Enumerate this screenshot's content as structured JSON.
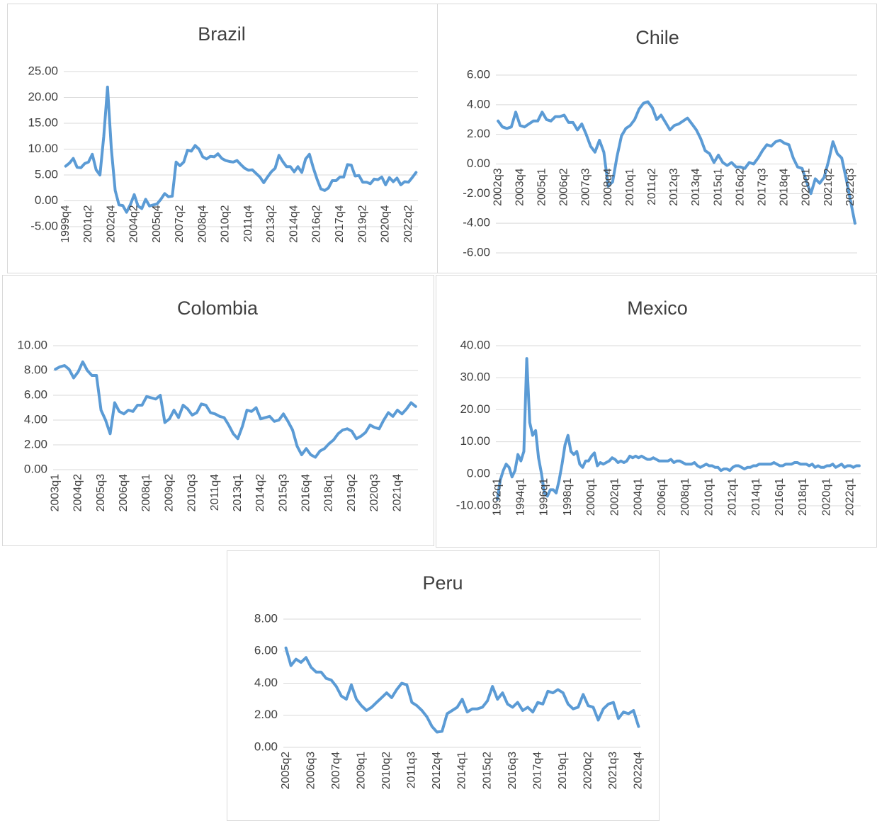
{
  "chart_data": [
    {
      "type": "line",
      "title": "Brazil",
      "color": "#5b9bd5",
      "grid": true,
      "ylim": [
        -5,
        25
      ],
      "yticks": [
        {
          "value": -5,
          "label": "-5.00"
        },
        {
          "value": 0,
          "label": "0.00"
        },
        {
          "value": 5,
          "label": "5.00"
        },
        {
          "value": 10,
          "label": "10.00"
        },
        {
          "value": 15,
          "label": "15.00"
        },
        {
          "value": 20,
          "label": "20.00"
        },
        {
          "value": 25,
          "label": "25.00"
        }
      ],
      "categories": [
        "1999q4",
        null,
        null,
        null,
        null,
        null,
        "2001q2",
        null,
        null,
        null,
        null,
        null,
        "2002q4",
        null,
        null,
        null,
        null,
        null,
        "2004q2",
        null,
        null,
        null,
        null,
        null,
        "2005q4",
        null,
        null,
        null,
        null,
        null,
        "2007q2",
        null,
        null,
        null,
        null,
        null,
        "2008q4",
        null,
        null,
        null,
        null,
        null,
        "2010q2",
        null,
        null,
        null,
        null,
        null,
        "2011q4",
        null,
        null,
        null,
        null,
        null,
        "2013q2",
        null,
        null,
        null,
        null,
        null,
        "2014q4",
        null,
        null,
        null,
        null,
        null,
        "2016q2",
        null,
        null,
        null,
        null,
        null,
        "2017q4",
        null,
        null,
        null,
        null,
        null,
        "2019q2",
        null,
        null,
        null,
        null,
        null,
        "2020q4",
        null,
        null,
        null,
        null,
        null,
        "2022q2",
        null,
        null
      ],
      "values": [
        6.7,
        7.3,
        8.2,
        6.5,
        6.4,
        7.2,
        7.5,
        9.0,
        6.0,
        5.0,
        12.5,
        22.0,
        10.0,
        2.0,
        -0.8,
        -0.9,
        -2.2,
        -0.7,
        1.2,
        -1.0,
        -1.5,
        0.3,
        -1.0,
        -0.8,
        -0.6,
        0.3,
        1.4,
        0.8,
        0.9,
        7.5,
        6.8,
        7.5,
        9.8,
        9.6,
        10.7,
        10.0,
        8.5,
        8.1,
        8.6,
        8.5,
        9.1,
        8.2,
        7.8,
        7.6,
        7.5,
        7.8,
        7.0,
        6.3,
        5.9,
        6.0,
        5.3,
        4.6,
        3.5,
        4.6,
        5.6,
        6.3,
        8.8,
        7.6,
        6.6,
        6.6,
        5.6,
        6.6,
        5.5,
        8.1,
        9.0,
        6.4,
        4.2,
        2.3,
        2.0,
        2.5,
        3.9,
        3.9,
        4.6,
        4.6,
        7.0,
        6.9,
        4.8,
        4.9,
        3.6,
        3.6,
        3.3,
        4.2,
        4.1,
        4.6,
        3.1,
        4.5,
        3.7,
        4.4,
        3.1,
        3.7,
        3.6,
        4.5,
        5.5
      ]
    },
    {
      "type": "line",
      "title": "Chile",
      "color": "#5b9bd5",
      "grid": true,
      "ylim": [
        -6,
        6
      ],
      "yticks": [
        {
          "value": -6,
          "label": "-6.00"
        },
        {
          "value": -4,
          "label": "-4.00"
        },
        {
          "value": -2,
          "label": "-2.00"
        },
        {
          "value": 0,
          "label": "0.00"
        },
        {
          "value": 2,
          "label": "2.00"
        },
        {
          "value": 4,
          "label": "4.00"
        },
        {
          "value": 6,
          "label": "6.00"
        }
      ],
      "categories": [
        "2002q3",
        null,
        null,
        null,
        null,
        "2003q4",
        null,
        null,
        null,
        null,
        "2005q1",
        null,
        null,
        null,
        null,
        "2006q2",
        null,
        null,
        null,
        null,
        "2007q3",
        null,
        null,
        null,
        null,
        "2008q4",
        null,
        null,
        null,
        null,
        "2010q1",
        null,
        null,
        null,
        null,
        "2011q2",
        null,
        null,
        null,
        null,
        "2012q3",
        null,
        null,
        null,
        null,
        "2013q4",
        null,
        null,
        null,
        null,
        "2015q1",
        null,
        null,
        null,
        null,
        "2016q2",
        null,
        null,
        null,
        null,
        "2017q3",
        null,
        null,
        null,
        null,
        "2018q4",
        null,
        null,
        null,
        null,
        "2020q1",
        null,
        null,
        null,
        null,
        "2021q2",
        null,
        null,
        null,
        null,
        "2022q3",
        null
      ],
      "values": [
        2.9,
        2.5,
        2.4,
        2.5,
        3.5,
        2.6,
        2.5,
        2.7,
        2.9,
        2.9,
        3.5,
        3.0,
        2.9,
        3.2,
        3.2,
        3.3,
        2.8,
        2.8,
        2.3,
        2.7,
        2.0,
        1.2,
        0.8,
        1.6,
        0.8,
        -1.5,
        -1.2,
        0.5,
        1.9,
        2.4,
        2.6,
        3.0,
        3.7,
        4.1,
        4.2,
        3.8,
        3.0,
        3.3,
        2.8,
        2.3,
        2.6,
        2.7,
        2.9,
        3.1,
        2.7,
        2.3,
        1.7,
        0.9,
        0.7,
        0.1,
        0.6,
        0.1,
        -0.1,
        0.1,
        -0.2,
        -0.2,
        -0.3,
        0.1,
        0.0,
        0.4,
        0.9,
        1.3,
        1.2,
        1.5,
        1.6,
        1.4,
        1.3,
        0.4,
        -0.2,
        -0.3,
        -1.2,
        -2.0,
        -1.0,
        -1.3,
        -0.9,
        0.2,
        1.5,
        0.7,
        0.4,
        -1.0,
        -2.5,
        -4.0
      ]
    },
    {
      "type": "line",
      "title": "Colombia",
      "color": "#5b9bd5",
      "grid": true,
      "ylim": [
        0,
        10
      ],
      "yticks": [
        {
          "value": 0,
          "label": "0.00"
        },
        {
          "value": 2,
          "label": "2.00"
        },
        {
          "value": 4,
          "label": "4.00"
        },
        {
          "value": 6,
          "label": "6.00"
        },
        {
          "value": 8,
          "label": "8.00"
        },
        {
          "value": 10,
          "label": "10.00"
        }
      ],
      "categories": [
        "2003q1",
        null,
        null,
        null,
        null,
        "2004q2",
        null,
        null,
        null,
        null,
        "2005q3",
        null,
        null,
        null,
        null,
        "2006q4",
        null,
        null,
        null,
        null,
        "2008q1",
        null,
        null,
        null,
        null,
        "2009q2",
        null,
        null,
        null,
        null,
        "2010q3",
        null,
        null,
        null,
        null,
        "2011q4",
        null,
        null,
        null,
        null,
        "2013q1",
        null,
        null,
        null,
        null,
        "2014q2",
        null,
        null,
        null,
        null,
        "2015q3",
        null,
        null,
        null,
        null,
        "2016q4",
        null,
        null,
        null,
        null,
        "2018q1",
        null,
        null,
        null,
        null,
        "2019q2",
        null,
        null,
        null,
        null,
        "2020q3",
        null,
        null,
        null,
        null,
        "2021q4",
        null,
        null,
        null,
        null
      ],
      "values": [
        8.1,
        8.3,
        8.4,
        8.1,
        7.4,
        7.9,
        8.7,
        8.0,
        7.6,
        7.6,
        4.8,
        4.0,
        2.9,
        5.4,
        4.7,
        4.5,
        4.8,
        4.7,
        5.2,
        5.2,
        5.9,
        5.8,
        5.7,
        6.0,
        3.8,
        4.1,
        4.8,
        4.2,
        5.2,
        4.9,
        4.4,
        4.6,
        5.3,
        5.2,
        4.6,
        4.5,
        4.3,
        4.2,
        3.6,
        2.9,
        2.5,
        3.5,
        4.8,
        4.7,
        5.0,
        4.1,
        4.2,
        4.3,
        3.9,
        4.0,
        4.5,
        3.9,
        3.2,
        1.9,
        1.2,
        1.7,
        1.2,
        1.0,
        1.5,
        1.7,
        2.1,
        2.4,
        2.9,
        3.2,
        3.3,
        3.1,
        2.5,
        2.7,
        3.0,
        3.6,
        3.4,
        3.3,
        4.0,
        4.6,
        4.3,
        4.8,
        4.5,
        4.9,
        5.4,
        5.1
      ]
    },
    {
      "type": "line",
      "title": "Mexico",
      "color": "#5b9bd5",
      "grid": true,
      "ylim": [
        -10,
        40
      ],
      "yticks": [
        {
          "value": -10,
          "label": "-10.00"
        },
        {
          "value": 0,
          "label": "0.00"
        },
        {
          "value": 10,
          "label": "10.00"
        },
        {
          "value": 20,
          "label": "20.00"
        },
        {
          "value": 30,
          "label": "30.00"
        },
        {
          "value": 40,
          "label": "40.00"
        }
      ],
      "categories": [
        "1992q1",
        null,
        null,
        null,
        null,
        null,
        null,
        null,
        "1994q1",
        null,
        null,
        null,
        null,
        null,
        null,
        null,
        "1996q1",
        null,
        null,
        null,
        null,
        null,
        null,
        null,
        "1998q1",
        null,
        null,
        null,
        null,
        null,
        null,
        null,
        "2000q1",
        null,
        null,
        null,
        null,
        null,
        null,
        null,
        "2002q1",
        null,
        null,
        null,
        null,
        null,
        null,
        null,
        "2004q1",
        null,
        null,
        null,
        null,
        null,
        null,
        null,
        "2006q1",
        null,
        null,
        null,
        null,
        null,
        null,
        null,
        "2008q1",
        null,
        null,
        null,
        null,
        null,
        null,
        null,
        "2010q1",
        null,
        null,
        null,
        null,
        null,
        null,
        null,
        "2012q1",
        null,
        null,
        null,
        null,
        null,
        null,
        null,
        "2014q1",
        null,
        null,
        null,
        null,
        null,
        null,
        null,
        "2016q1",
        null,
        null,
        null,
        null,
        null,
        null,
        null,
        "2018q1",
        null,
        null,
        null,
        null,
        null,
        null,
        null,
        "2020q1",
        null,
        null,
        null,
        null,
        null,
        null,
        null,
        "2022q1",
        null,
        null,
        null
      ],
      "values": [
        -8,
        -2,
        1,
        3,
        2,
        -1,
        1,
        6,
        4,
        7,
        36,
        16,
        12,
        13.5,
        5,
        0,
        -6,
        -7,
        -5,
        -5,
        -6,
        -2,
        3,
        9,
        12,
        7,
        6,
        7,
        3,
        2,
        4,
        4,
        5.5,
        6.5,
        2.5,
        3.5,
        3,
        3.5,
        4,
        5,
        4.5,
        3.5,
        4,
        3.5,
        4,
        5.5,
        5,
        5.5,
        5,
        5.5,
        5,
        4.5,
        4.5,
        5,
        4.5,
        4,
        4,
        4,
        4,
        4.5,
        3.5,
        4,
        4,
        3.5,
        3,
        3,
        3,
        3.5,
        2.5,
        2,
        2.5,
        3,
        2.5,
        2.5,
        2,
        2,
        1,
        1.5,
        1.5,
        1,
        2,
        2.5,
        2.5,
        2,
        1.5,
        2,
        2,
        2.5,
        2.5,
        3,
        3,
        3,
        3,
        3,
        3.5,
        3,
        2.5,
        2.5,
        3,
        3,
        3,
        3.5,
        3.5,
        3,
        3,
        3,
        2.5,
        3,
        2,
        2.5,
        2,
        2,
        2.5,
        2.5,
        3,
        2,
        2.5,
        3,
        2,
        2.5,
        2.5,
        2,
        2.5,
        2.5
      ]
    },
    {
      "type": "line",
      "title": "Peru",
      "color": "#5b9bd5",
      "grid": true,
      "ylim": [
        0,
        8
      ],
      "yticks": [
        {
          "value": 0,
          "label": "0.00"
        },
        {
          "value": 2,
          "label": "2.00"
        },
        {
          "value": 4,
          "label": "4.00"
        },
        {
          "value": 6,
          "label": "6.00"
        },
        {
          "value": 8,
          "label": "8.00"
        }
      ],
      "categories": [
        "2005q2",
        null,
        null,
        null,
        null,
        "2006q3",
        null,
        null,
        null,
        null,
        "2007q4",
        null,
        null,
        null,
        null,
        "2009q1",
        null,
        null,
        null,
        null,
        "2010q2",
        null,
        null,
        null,
        null,
        "2011q3",
        null,
        null,
        null,
        null,
        "2012q4",
        null,
        null,
        null,
        null,
        "2014q1",
        null,
        null,
        null,
        null,
        "2015q2",
        null,
        null,
        null,
        null,
        "2016q3",
        null,
        null,
        null,
        null,
        "2017q4",
        null,
        null,
        null,
        null,
        "2019q1",
        null,
        null,
        null,
        null,
        "2020q2",
        null,
        null,
        null,
        null,
        "2021q3",
        null,
        null,
        null,
        null,
        "2022q4"
      ],
      "values": [
        6.2,
        5.1,
        5.5,
        5.3,
        5.6,
        5.0,
        4.7,
        4.7,
        4.3,
        4.2,
        3.8,
        3.2,
        3.0,
        3.9,
        3.0,
        2.6,
        2.3,
        2.5,
        2.8,
        3.1,
        3.4,
        3.1,
        3.6,
        4.0,
        3.9,
        2.8,
        2.6,
        2.3,
        1.9,
        1.3,
        0.95,
        1.0,
        2.1,
        2.3,
        2.5,
        3.0,
        2.2,
        2.4,
        2.4,
        2.5,
        2.9,
        3.8,
        3.0,
        3.4,
        2.7,
        2.5,
        2.8,
        2.3,
        2.5,
        2.2,
        2.8,
        2.7,
        3.5,
        3.4,
        3.6,
        3.4,
        2.7,
        2.4,
        2.5,
        3.3,
        2.6,
        2.5,
        1.7,
        2.4,
        2.7,
        2.8,
        1.8,
        2.2,
        2.1,
        2.3,
        1.3
      ]
    }
  ]
}
